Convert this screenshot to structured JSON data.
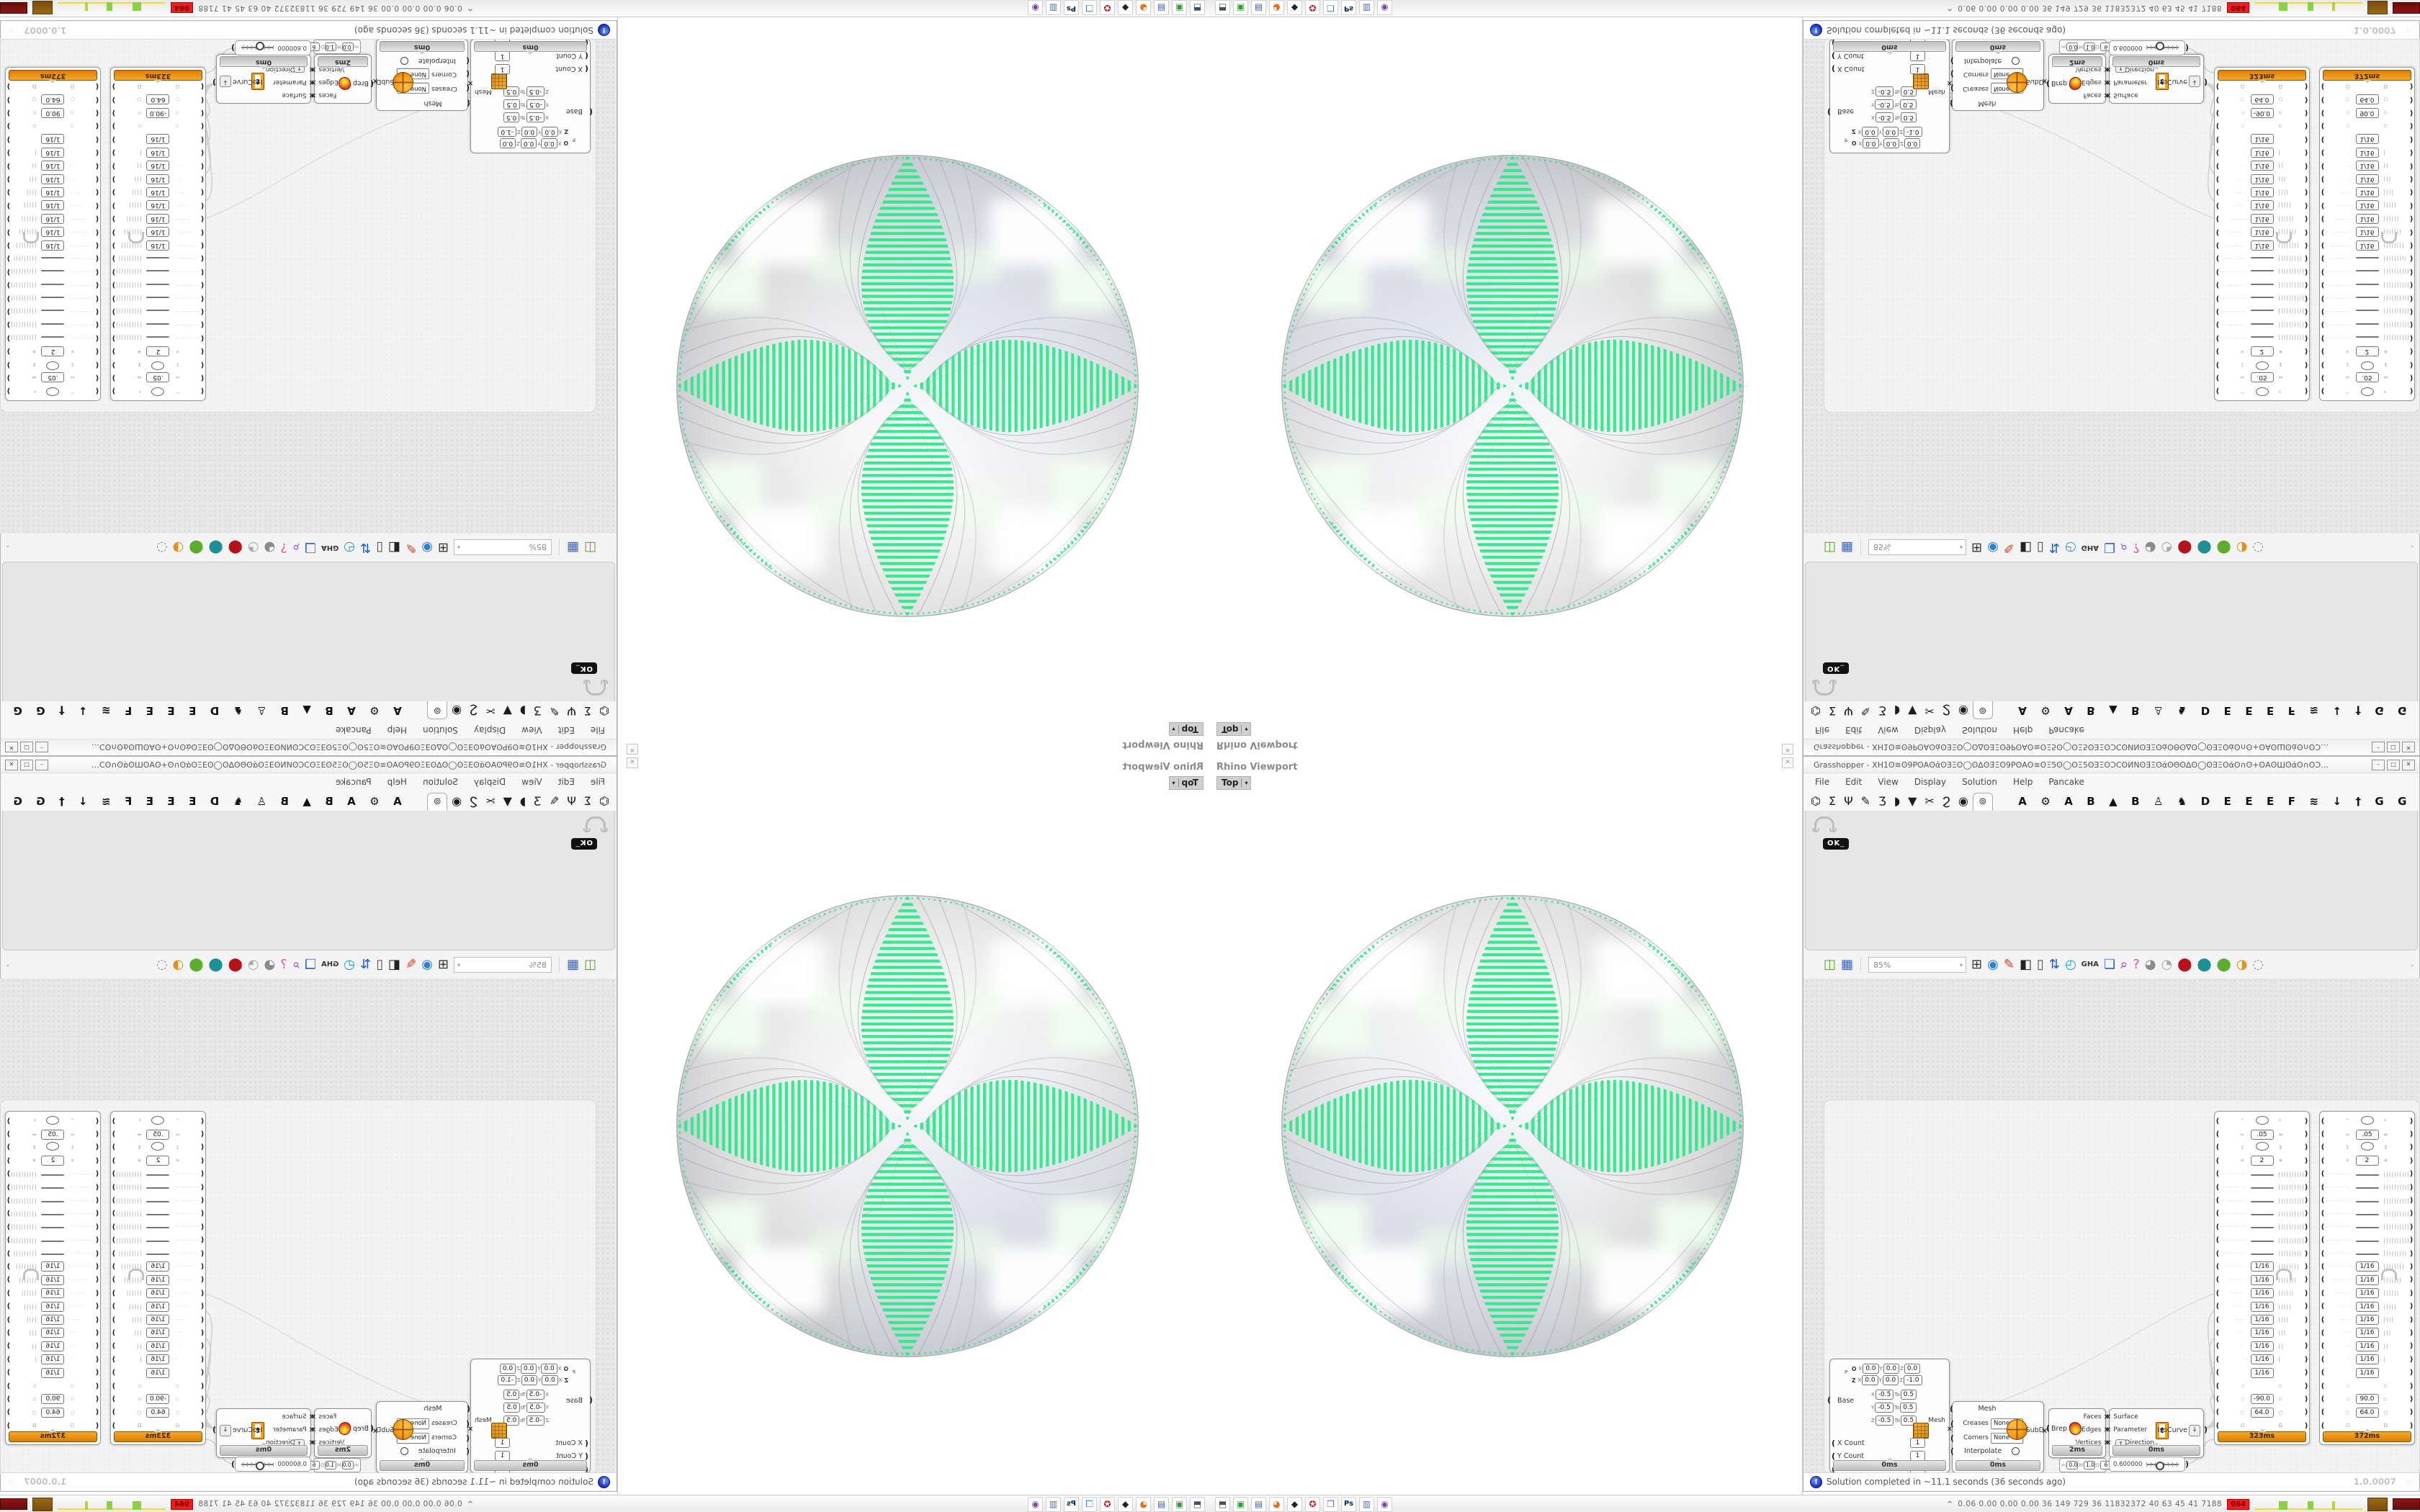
{
  "colors": {
    "pattern_green": "#2dea8c",
    "profiler_orange": "#e8920e",
    "status_info_blue": "#2233cc"
  },
  "viewport": {
    "title": "Rhino Viewport",
    "view_button": "Top",
    "view_arrow": "▾",
    "close_glyph": "✕"
  },
  "gh": {
    "title": "Grasshopper - XH1ʘ≋ʘ9PʘAʘάʘƎΞʘ◯ʘ∆ʘƎΞʘ9PʘAʘ≋ʘΞ5ʘ◯ʘΞ5ʘƎΞʘƆCʘͶNʘƎΞʘάʘΘʘ∆ʘ◯ʘƎΞʘάʘ∩ʘ+ʘAʘШʘάʘ∩ʘƆCʘ◯ʘϽʘ◯ʘϽʘ◯ʘϽʘ◯ʘϽʘ◯ʘϽʘ◯ʘϽʘƆ...",
    "window_buttons": [
      "–",
      "□",
      "✕"
    ],
    "menu": [
      "File",
      "Edit",
      "View",
      "Display",
      "Solution",
      "Help",
      "Pancake"
    ],
    "tabs": [
      "⌬",
      "Σ",
      "Ψ",
      "✎",
      "Ʒ",
      "◗",
      "▼",
      "✂",
      "Ϩ",
      "◉"
    ],
    "active_tab": "⊚",
    "plugin_tabs": [
      "A",
      "⚙",
      "A",
      "B",
      "▲",
      "B",
      "♙",
      "♞",
      "D",
      "E",
      "E",
      "E",
      "F",
      "≋",
      "↓",
      "†",
      "G",
      "G"
    ],
    "panel_badge": "OK",
    "panel_badge_cursor": "_",
    "toolbar": {
      "left_icons": [
        {
          "name": "open-file-icon",
          "glyph": "◫",
          "color": "#5aa02c"
        },
        {
          "name": "save-file-icon",
          "glyph": "▦",
          "color": "#3a62c8"
        }
      ],
      "zoom": "85%",
      "zoom_arrow": "▾",
      "icons": [
        {
          "name": "zoom-extents-icon",
          "glyph": "⊞",
          "color": "#333333"
        },
        {
          "name": "preview-eye-icon",
          "glyph": "◉",
          "color": "#2a7fd4"
        },
        {
          "name": "wireframe-preview-icon",
          "glyph": "✎",
          "color": "#d43a1a"
        },
        {
          "name": "shaded-preview-icon",
          "glyph": "◧",
          "color": "#222222"
        },
        {
          "name": "remote-panel-icon",
          "glyph": "▯",
          "color": "#444444"
        },
        {
          "name": "locate-component-icon",
          "glyph": "⇅",
          "color": "#1a5ad4"
        },
        {
          "name": "gh-settings-icon",
          "glyph": "◴",
          "color": "#2a9fd4"
        },
        {
          "name": "gha-developer-icon",
          "glyph": "GHA",
          "color": "#333333"
        },
        {
          "name": "window-icon",
          "glyph": "❏",
          "color": "#2a5fd4"
        },
        {
          "name": "find-icon",
          "glyph": "⌕",
          "color": "#7a2fd4"
        },
        {
          "name": "package-icon",
          "glyph": "?",
          "color": "#e0559a"
        },
        {
          "name": "blob-soft-icon",
          "glyph": "◕",
          "color": "#8a8a8a"
        },
        {
          "name": "blob-wire-icon",
          "glyph": "◔",
          "color": "#aaaaaa"
        },
        {
          "name": "blob-red-icon",
          "glyph": "⬤",
          "color": "#b5121b"
        },
        {
          "name": "blob-teal-icon",
          "glyph": "⬤",
          "color": "#1f8f96"
        },
        {
          "name": "blob-green-icon",
          "glyph": "⬤",
          "color": "#5cae2e"
        },
        {
          "name": "blob-orange-icon",
          "glyph": "◑",
          "color": "#e2901e"
        },
        {
          "name": "selection-region-icon",
          "glyph": "◌",
          "color": "#888888"
        }
      ],
      "end_arrow": "⌄"
    },
    "status": {
      "icon_glyph": "!",
      "message": "Solution completed in ~11.1 seconds (36 seconds ago)",
      "version": "1.0.0007",
      "grip": "⁙"
    }
  },
  "components": {
    "box": {
      "plane_rows": [
        [
          "O",
          "X",
          "0.0",
          "Y",
          "0.0",
          "Z",
          "0.0"
        ],
        [
          "Z",
          "X",
          "0.0",
          "Y",
          "0.0",
          "Z",
          "-1.0"
        ]
      ],
      "p_label": "P",
      "base_label": "Base",
      "domains": [
        [
          "X",
          "-0.5",
          "To",
          "0.5"
        ],
        [
          "Y",
          "-0.5",
          "To",
          "0.5"
        ],
        [
          "Z",
          "-0.5",
          "To",
          "0.5"
        ]
      ],
      "mesh_label": "Mesh",
      "counts": [
        [
          "X Count",
          "1"
        ],
        [
          "Y Count",
          "1"
        ],
        [
          "Z Count",
          "1"
        ]
      ],
      "time": "0ms"
    },
    "subd": {
      "input_label": "Mesh",
      "dropdowns": [
        [
          "Creases",
          "None"
        ],
        [
          "Corners",
          "None"
        ]
      ],
      "interpolate_label": "Interpolate",
      "output": "SubD",
      "time": "0ms"
    },
    "brep": {
      "label": "Brep",
      "outputs": [
        "Faces",
        "Edges",
        "Vertices"
      ],
      "time": "2ms"
    },
    "iso": {
      "inputs": [
        "Surface",
        "Parameter",
        "Direction"
      ],
      "up_glyph": "↑",
      "icon_letter": "t",
      "output": "IsoCurve",
      "down_glyph": "↓",
      "time": "0ms"
    },
    "slider": {
      "settings": [
        [
          "m",
          "0.0"
        ],
        [
          "M",
          "1.0"
        ],
        [
          "D",
          "6"
        ]
      ],
      "value": "0.600000"
    },
    "gene_pools": {
      "panels": [
        {
          "time": "323ms",
          "angle": "-90.0"
        },
        {
          "time": "372ms",
          "angle": "90.0"
        }
      ],
      "rows": [
        {
          "l": "^",
          "shape": "ellipse",
          "r": "*"
        },
        {
          "l": "⇔",
          "v": ".05",
          "r": "⇔"
        },
        {
          "l": "↕",
          "shape": "ellipse",
          "r": "↕"
        },
        {
          "l": "✳",
          "v": "2",
          "r": "✳"
        },
        {
          "l": "···············",
          "v": "",
          "r": "|||||||||||||||"
        },
        {
          "l": "··············",
          "v": "",
          "r": "||||||||||||||"
        },
        {
          "l": "·············",
          "v": "",
          "r": "|||||||||||||"
        },
        {
          "l": "············",
          "v": "",
          "r": "||||||||||||"
        },
        {
          "l": "···········",
          "v": "",
          "r": "|||||||||||"
        },
        {
          "l": "··········",
          "v": "",
          "r": "||||||||||"
        },
        {
          "l": "·········",
          "v": "",
          "r": "|||||||||"
        },
        {
          "l": "········",
          "v": "1/16",
          "r": "||||||||"
        },
        {
          "l": "·······",
          "v": "1/16",
          "r": "|||||||"
        },
        {
          "l": "······",
          "v": "1/16",
          "r": "||||||"
        },
        {
          "l": "·····",
          "v": "1/16",
          "r": "|||||"
        },
        {
          "l": "····",
          "v": "1/16",
          "r": "||||"
        },
        {
          "l": "···",
          "v": "1/16",
          "r": "|||"
        },
        {
          "l": "··",
          "v": "1/16",
          "r": "||"
        },
        {
          "l": "·",
          "v": "1/16",
          "r": "|"
        },
        {
          "l": "",
          "v": "1/16",
          "r": ""
        },
        {
          "l": "▫",
          "r": "▫"
        },
        {
          "l": "▫",
          "v": "$angle",
          "r": "▫"
        },
        {
          "l": "○",
          "v": "64.0",
          "r": "○"
        },
        {
          "l": "Ω",
          "r": "Ω"
        }
      ]
    }
  },
  "taskbar": {
    "icons": [
      {
        "name": "system-monitor-icon",
        "glyph": "⬒",
        "color": "#3c4f66"
      },
      {
        "name": "green-app-icon",
        "glyph": "▣",
        "color": "#2f9e2f"
      },
      {
        "name": "floppy64-icon",
        "glyph": "▤",
        "color": "#3a57c5"
      },
      {
        "name": "firefox-icon",
        "glyph": "◕",
        "color": "#e8701a"
      },
      {
        "name": "inkscape-icon",
        "glyph": "◆",
        "color": "#222222"
      },
      {
        "name": "red-emblem-icon",
        "glyph": "✪",
        "color": "#c01820"
      },
      {
        "name": "blue-window-icon",
        "glyph": "❒",
        "color": "#3a6fd8"
      },
      {
        "name": "photoshop-icon",
        "glyph": "Ps",
        "color": "#0b2a4a"
      },
      {
        "name": "bluegray-app-icon",
        "glyph": "▥",
        "color": "#4a6fa8"
      },
      {
        "name": "purple-owl-icon",
        "glyph": "◉",
        "color": "#7a3fa0"
      }
    ],
    "tray": {
      "chevron": "^",
      "stats": "0.06 0.00 0.00 0.00   36   149   729   36   11832372   40   63   45   41   7188",
      "badge": "064"
    }
  }
}
